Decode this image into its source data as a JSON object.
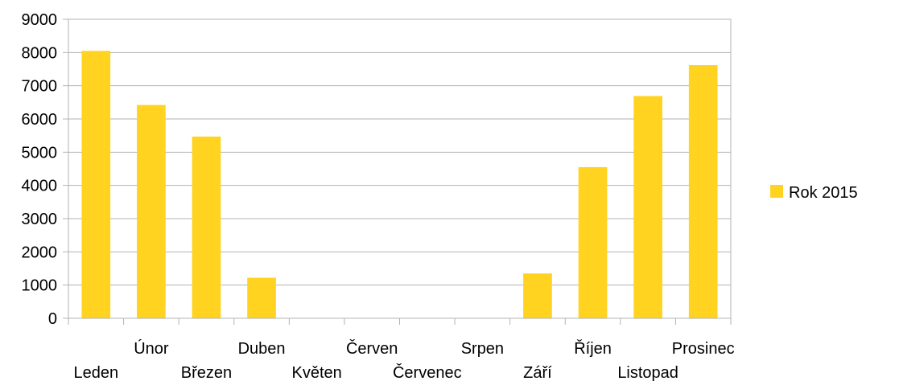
{
  "chart_data": {
    "type": "bar",
    "categories": [
      "Leden",
      "Únor",
      "Březen",
      "Duben",
      "Květen",
      "Červen",
      "Červenec",
      "Srpen",
      "Září",
      "Říjen",
      "Listopad",
      "Prosinec"
    ],
    "series": [
      {
        "name": "Rok 2015",
        "values": [
          8050,
          6420,
          5470,
          1220,
          0,
          0,
          0,
          0,
          1350,
          4550,
          6690,
          7620
        ],
        "color": "#ffd320"
      }
    ],
    "yticks": [
      "0",
      "1000",
      "2000",
      "3000",
      "4000",
      "5000",
      "6000",
      "7000",
      "8000",
      "9000"
    ],
    "ylim": [
      0,
      9000
    ],
    "grid": true,
    "legend_position": "right",
    "title": "",
    "xlabel": "",
    "ylabel": ""
  }
}
